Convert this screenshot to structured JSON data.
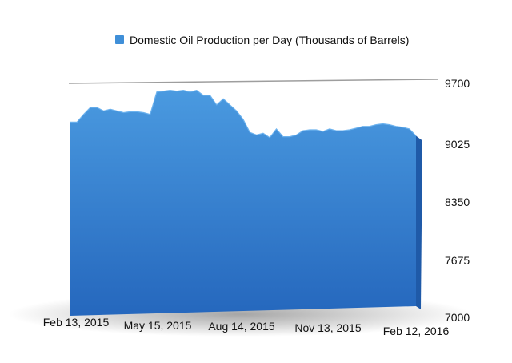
{
  "chart_data": {
    "type": "area",
    "title": "",
    "xlabel": "",
    "ylabel": "",
    "legend": {
      "position": "top",
      "entries": [
        {
          "label": "Domestic Oil Production per Day (Thousands of Barrels)",
          "color": "#3f8fd8"
        }
      ]
    },
    "y_ticks": [
      "9700",
      "9025",
      "8350",
      "7675",
      "7000"
    ],
    "x_ticks": [
      "Feb 13, 2015",
      "May 15, 2015",
      "Aug 14, 2015",
      "Nov 13, 2015",
      "Feb 12, 2016"
    ],
    "ylim": [
      7000,
      9700
    ],
    "grid": "top gridline only",
    "colors": {
      "fill_top": "#4a9ae0",
      "fill_bottom": "#2567bd",
      "side": "#1f5aa8"
    },
    "series": [
      {
        "name": "Domestic Oil Production per Day (Thousands of Barrels)",
        "x": [
          "2015-02-13",
          "2015-02-20",
          "2015-02-27",
          "2015-03-06",
          "2015-03-13",
          "2015-03-20",
          "2015-03-27",
          "2015-04-03",
          "2015-04-10",
          "2015-04-17",
          "2015-04-24",
          "2015-05-01",
          "2015-05-08",
          "2015-05-15",
          "2015-05-22",
          "2015-05-29",
          "2015-06-05",
          "2015-06-12",
          "2015-06-19",
          "2015-06-26",
          "2015-07-03",
          "2015-07-10",
          "2015-07-17",
          "2015-07-24",
          "2015-07-31",
          "2015-08-07",
          "2015-08-14",
          "2015-08-21",
          "2015-08-28",
          "2015-09-04",
          "2015-09-11",
          "2015-09-18",
          "2015-09-25",
          "2015-10-02",
          "2015-10-09",
          "2015-10-16",
          "2015-10-23",
          "2015-10-30",
          "2015-11-06",
          "2015-11-13",
          "2015-11-20",
          "2015-11-27",
          "2015-12-04",
          "2015-12-11",
          "2015-12-18",
          "2015-12-25",
          "2016-01-01",
          "2016-01-08",
          "2016-01-15",
          "2016-01-22",
          "2016-01-29",
          "2016-02-05",
          "2016-02-12"
        ],
        "values": [
          9250,
          9250,
          9340,
          9420,
          9420,
          9380,
          9400,
          9380,
          9360,
          9370,
          9370,
          9360,
          9340,
          9600,
          9610,
          9620,
          9610,
          9620,
          9600,
          9620,
          9560,
          9560,
          9450,
          9520,
          9450,
          9380,
          9280,
          9130,
          9100,
          9120,
          9070,
          9170,
          9080,
          9080,
          9100,
          9150,
          9160,
          9160,
          9140,
          9170,
          9150,
          9150,
          9160,
          9180,
          9200,
          9200,
          9220,
          9230,
          9220,
          9200,
          9190,
          9170,
          9090
        ]
      }
    ]
  }
}
